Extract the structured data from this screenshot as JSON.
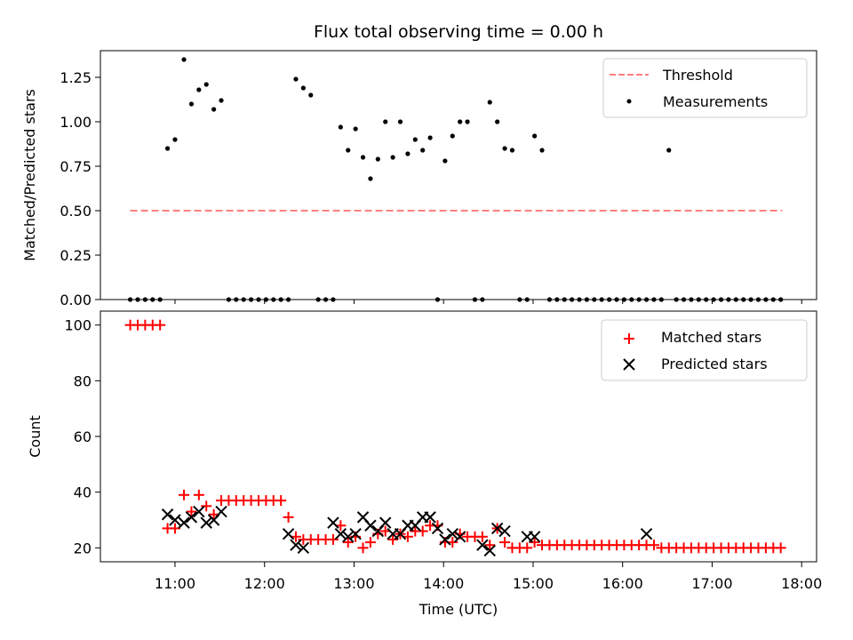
{
  "chart_data": [
    {
      "type": "scatter",
      "title": "Flux total observing time = 0.00 h",
      "ylabel": "Matched/Predicted stars",
      "xlabel": "",
      "xlim": [
        "10:10",
        "18:10"
      ],
      "ylim": [
        0,
        1.4
      ],
      "yticks": [
        0.0,
        0.25,
        0.5,
        0.75,
        1.0,
        1.25
      ],
      "ytick_labels": [
        "0.00",
        "0.25",
        "0.50",
        "0.75",
        "1.00",
        "1.25"
      ],
      "legend_position": "top-right",
      "series": [
        {
          "name": "Threshold",
          "kind": "dashed-line",
          "color": "#ff7f7f",
          "x": [
            "10:30",
            "17:47"
          ],
          "y": [
            0.5,
            0.5
          ]
        },
        {
          "name": "Measurements",
          "kind": "points",
          "color": "#000000",
          "x": [
            "10:30",
            "10:35",
            "10:40",
            "10:45",
            "10:50",
            "10:55",
            "11:00",
            "11:06",
            "11:11",
            "11:16",
            "11:21",
            "11:26",
            "11:31",
            "11:36",
            "11:41",
            "11:46",
            "11:51",
            "11:56",
            "12:01",
            "12:06",
            "12:11",
            "12:16",
            "12:21",
            "12:26",
            "12:31",
            "12:36",
            "12:41",
            "12:46",
            "12:51",
            "12:56",
            "13:01",
            "13:06",
            "13:11",
            "13:16",
            "13:21",
            "13:26",
            "13:31",
            "13:36",
            "13:41",
            "13:46",
            "13:51",
            "13:56",
            "14:01",
            "14:06",
            "14:11",
            "14:16",
            "14:21",
            "14:26",
            "14:31",
            "14:36",
            "14:41",
            "14:46",
            "14:51",
            "14:56",
            "15:01",
            "15:06",
            "15:11",
            "15:16",
            "15:21",
            "15:26",
            "15:31",
            "15:36",
            "15:41",
            "15:46",
            "15:51",
            "15:56",
            "16:01",
            "16:06",
            "16:11",
            "16:16",
            "16:21",
            "16:26",
            "16:31",
            "16:36",
            "16:41",
            "16:46",
            "16:51",
            "16:56",
            "17:01",
            "17:06",
            "17:11",
            "17:16",
            "17:21",
            "17:26",
            "17:31",
            "17:36",
            "17:41",
            "17:46"
          ],
          "y": [
            0,
            0,
            0,
            0,
            0,
            0.85,
            0.9,
            1.35,
            1.1,
            1.18,
            1.21,
            1.07,
            1.12,
            0,
            0,
            0,
            0,
            0,
            0,
            0,
            0,
            0,
            1.24,
            1.19,
            1.15,
            0,
            0,
            0,
            0.97,
            0.84,
            0.96,
            0.8,
            0.68,
            0.79,
            1.0,
            0.8,
            1.0,
            0.82,
            0.9,
            0.84,
            0.91,
            0,
            0.78,
            0.92,
            1.0,
            1.0,
            0,
            0,
            1.11,
            1.0,
            0.85,
            0.84,
            0,
            0,
            0.92,
            0.84,
            0,
            0,
            0,
            0,
            0,
            0,
            0,
            0,
            0,
            0,
            0,
            0,
            0,
            0,
            0,
            0,
            0.84,
            0,
            0,
            0,
            0,
            0,
            0,
            0,
            0,
            0,
            0,
            0,
            0,
            0,
            0,
            0
          ]
        }
      ]
    },
    {
      "type": "scatter",
      "title": "",
      "ylabel": "Count",
      "xlabel": "Time (UTC)",
      "xlim": [
        "10:10",
        "18:10"
      ],
      "ylim": [
        15,
        105
      ],
      "yticks": [
        20,
        40,
        60,
        80,
        100
      ],
      "xticks": [
        "11:00",
        "12:00",
        "13:00",
        "14:00",
        "15:00",
        "16:00",
        "17:00",
        "18:00"
      ],
      "legend_position": "top-right",
      "series": [
        {
          "name": "Matched stars",
          "kind": "plus",
          "color": "#ff0000",
          "x": [
            "10:30",
            "10:35",
            "10:40",
            "10:45",
            "10:50",
            "10:55",
            "11:00",
            "11:06",
            "11:11",
            "11:16",
            "11:21",
            "11:26",
            "11:31",
            "11:36",
            "11:41",
            "11:46",
            "11:51",
            "11:56",
            "12:01",
            "12:06",
            "12:11",
            "12:16",
            "12:21",
            "12:26",
            "12:31",
            "12:36",
            "12:41",
            "12:46",
            "12:51",
            "12:56",
            "13:01",
            "13:06",
            "13:11",
            "13:16",
            "13:21",
            "13:26",
            "13:31",
            "13:36",
            "13:41",
            "13:46",
            "13:51",
            "13:56",
            "14:01",
            "14:06",
            "14:11",
            "14:16",
            "14:21",
            "14:26",
            "14:31",
            "14:36",
            "14:41",
            "14:46",
            "14:51",
            "14:56",
            "15:01",
            "15:06",
            "15:11",
            "15:16",
            "15:21",
            "15:26",
            "15:31",
            "15:36",
            "15:41",
            "15:46",
            "15:51",
            "15:56",
            "16:01",
            "16:06",
            "16:11",
            "16:16",
            "16:21",
            "16:26",
            "16:31",
            "16:36",
            "16:41",
            "16:46",
            "16:51",
            "16:56",
            "17:01",
            "17:06",
            "17:11",
            "17:16",
            "17:21",
            "17:26",
            "17:31",
            "17:36",
            "17:41",
            "17:46"
          ],
          "y": [
            100,
            100,
            100,
            100,
            100,
            27,
            27,
            39,
            33,
            39,
            35,
            32,
            37,
            37,
            37,
            37,
            37,
            37,
            37,
            37,
            37,
            31,
            24,
            23,
            23,
            23,
            23,
            23,
            28,
            22,
            24,
            20,
            22,
            25,
            26,
            23,
            25,
            24,
            26,
            26,
            28,
            28,
            22,
            22,
            25,
            24,
            24,
            24,
            21,
            27,
            22,
            20,
            20,
            20,
            22,
            21,
            21,
            21,
            21,
            21,
            21,
            21,
            21,
            21,
            21,
            21,
            21,
            21,
            21,
            21,
            21,
            20,
            20,
            20,
            20,
            20,
            20,
            20,
            20,
            20,
            20,
            20,
            20,
            20,
            20,
            20,
            20,
            20
          ]
        },
        {
          "name": "Predicted stars",
          "kind": "cross",
          "color": "#000000",
          "x": [
            "10:55",
            "11:00",
            "11:06",
            "11:11",
            "11:16",
            "11:21",
            "11:26",
            "11:31",
            "12:16",
            "12:21",
            "12:26",
            "12:46",
            "12:51",
            "12:56",
            "13:01",
            "13:06",
            "13:11",
            "13:16",
            "13:21",
            "13:26",
            "13:31",
            "13:36",
            "13:41",
            "13:46",
            "13:51",
            "13:56",
            "14:01",
            "14:06",
            "14:11",
            "14:26",
            "14:31",
            "14:36",
            "14:41",
            "14:56",
            "15:01",
            "16:16"
          ],
          "y": [
            32,
            30,
            29,
            31,
            33,
            29,
            30,
            33,
            25,
            21,
            20,
            29,
            25,
            24,
            25,
            31,
            28,
            26,
            29,
            25,
            25,
            28,
            28,
            31,
            31,
            27,
            23,
            25,
            24,
            21,
            19,
            27,
            26,
            24,
            24,
            25
          ]
        }
      ]
    }
  ]
}
